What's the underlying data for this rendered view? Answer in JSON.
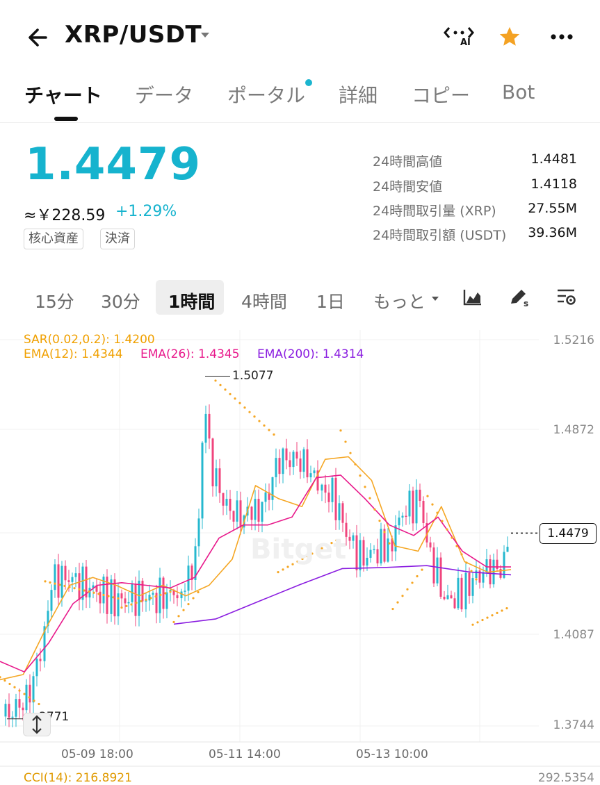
{
  "header": {
    "pair": "XRP/USDT",
    "ai_label": "AI",
    "accent": "#16b3ce",
    "star_color": "#f4a223"
  },
  "tabs": [
    "チャート",
    "データ",
    "ポータル",
    "詳細",
    "コピー",
    "Bot"
  ],
  "price": {
    "last": "1.4479",
    "fiat": "≈￥228.59",
    "change": "+1.29%",
    "tags": [
      "核心資産",
      "決済"
    ]
  },
  "stats": [
    {
      "label": "24時間高値",
      "value": "1.4481"
    },
    {
      "label": "24時間安値",
      "value": "1.4118"
    },
    {
      "label": "24時間取引量 (XRP)",
      "value": "27.55M"
    },
    {
      "label": "24時間取引額 (USDT)",
      "value": "39.36M"
    }
  ],
  "intervals": [
    "15分",
    "30分",
    "1時間",
    "4時間",
    "1日",
    "もっと"
  ],
  "chart": {
    "indicators": {
      "sar": "SAR(0.02,0.2): 1.4200",
      "ema12": "EMA(12): 1.4344",
      "ema26": "EMA(26): 1.4345",
      "ema200": "EMA(200): 1.4314"
    },
    "y_ticks": [
      "1.5216",
      "1.4872",
      "1.4087",
      "1.3744"
    ],
    "x_ticks": [
      "05-09 18:00",
      "05-11 14:00",
      "05-13 10:00"
    ],
    "high_label": "1.5077",
    "low_label": "3771",
    "last_price_tag": "1.4479",
    "watermark": "Bitget",
    "cci": "CCI(14): 216.8921",
    "cci_axis": "292.5354",
    "colors": {
      "up": "#26b8cf",
      "down": "#f0457d",
      "sar": "#f5a623",
      "ema12": "#f5a623",
      "ema26": "#e8198b",
      "ema200": "#8a1de0"
    }
  },
  "chart_data": {
    "type": "line",
    "y_range": [
      1.3744,
      1.5216
    ],
    "highest": 1.5077,
    "lowest": 1.3771,
    "last": 1.4479,
    "ema12_path": [
      1.392,
      1.394,
      1.412,
      1.428,
      1.431,
      1.428,
      1.424,
      1.428,
      1.424,
      1.428,
      1.438,
      1.466,
      1.461,
      1.458,
      1.476,
      1.477,
      1.468,
      1.443,
      1.441,
      1.458,
      1.437,
      1.433,
      1.434
    ],
    "ema26_path": [
      1.399,
      1.395,
      1.406,
      1.421,
      1.428,
      1.429,
      1.428,
      1.427,
      1.431,
      1.446,
      1.451,
      1.451,
      1.454,
      1.469,
      1.47,
      1.461,
      1.451,
      1.447,
      1.454,
      1.441,
      1.435,
      1.435
    ],
    "ema200_path": [
      1.4132,
      1.4152,
      1.4218,
      1.4283,
      1.4344,
      1.4348,
      1.4355,
      1.4331,
      1.432
    ]
  }
}
